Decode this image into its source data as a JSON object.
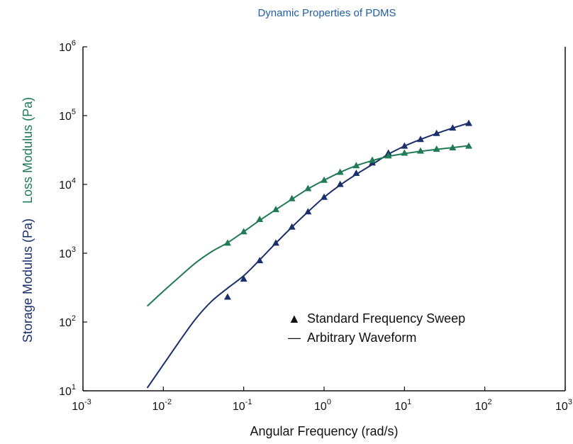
{
  "chart_data": {
    "type": "scatter",
    "title": "Dynamic Properties of PDMS",
    "xlabel": "Angular Frequency (rad/s)",
    "ylabel_top": "Loss Modulus (Pa)",
    "ylabel_bottom": "Storage Modulus (Pa)",
    "x_scale": "log",
    "y_scale": "log",
    "xlim": [
      0.001,
      1000
    ],
    "ylim": [
      10,
      1000000
    ],
    "x_ticks": [
      {
        "base": "10",
        "exp": "-3"
      },
      {
        "base": "10",
        "exp": "-2"
      },
      {
        "base": "10",
        "exp": "-1"
      },
      {
        "base": "10",
        "exp": "0"
      },
      {
        "base": "10",
        "exp": "1"
      },
      {
        "base": "10",
        "exp": "2"
      },
      {
        "base": "10",
        "exp": "3"
      }
    ],
    "y_ticks": [
      {
        "base": "10",
        "exp": "1"
      },
      {
        "base": "10",
        "exp": "2"
      },
      {
        "base": "10",
        "exp": "3"
      },
      {
        "base": "10",
        "exp": "4"
      },
      {
        "base": "10",
        "exp": "5"
      },
      {
        "base": "10",
        "exp": "6"
      }
    ],
    "grid": false,
    "legend": {
      "position": "lower-right",
      "entries": [
        {
          "symbol": "▲",
          "label": "Standard Frequency Sweep"
        },
        {
          "symbol": "—",
          "label": "Arbitrary Waveform"
        }
      ]
    },
    "colors": {
      "storage": "#1b2f6b",
      "loss": "#1f7a55",
      "title": "#1f5fa8"
    },
    "series": [
      {
        "name": "Storage Modulus",
        "color": "#1b2f6b",
        "markers": {
          "x": [
            0.063,
            0.1,
            0.158,
            0.251,
            0.398,
            0.631,
            1.0,
            1.585,
            2.512,
            3.981,
            6.31,
            10.0,
            15.85,
            25.12,
            39.81,
            63.1
          ],
          "y": [
            230,
            420,
            780,
            1400,
            2400,
            4000,
            6500,
            10000,
            14500,
            20500,
            28500,
            36000,
            45000,
            55000,
            66000,
            77000
          ]
        },
        "line": {
          "x": [
            0.0063,
            0.01,
            0.0158,
            0.0251,
            0.0398,
            0.063,
            0.1,
            0.158,
            0.251,
            0.398,
            0.631,
            1.0,
            1.585,
            2.512,
            3.981,
            6.31,
            10.0,
            15.85,
            25.12,
            39.81,
            63.1
          ],
          "y": [
            11,
            24,
            52,
            110,
            200,
            310,
            470,
            800,
            1400,
            2400,
            4000,
            6500,
            9800,
            14000,
            19500,
            27500,
            36000,
            45000,
            55000,
            66000,
            78000
          ]
        }
      },
      {
        "name": "Loss Modulus",
        "color": "#1f7a55",
        "markers": {
          "x": [
            0.063,
            0.1,
            0.158,
            0.251,
            0.398,
            0.631,
            1.0,
            1.585,
            2.512,
            3.981,
            6.31,
            10.0,
            15.85,
            25.12,
            39.81,
            63.1
          ],
          "y": [
            1400,
            2050,
            3100,
            4300,
            6200,
            8700,
            11500,
            15000,
            18700,
            22500,
            26000,
            28500,
            30500,
            32500,
            34000,
            36000
          ]
        },
        "line": {
          "x": [
            0.0063,
            0.01,
            0.0158,
            0.0251,
            0.0398,
            0.063,
            0.1,
            0.158,
            0.251,
            0.398,
            0.631,
            1.0,
            1.585,
            2.512,
            3.981,
            6.31,
            10.0,
            15.85,
            25.12,
            39.81,
            63.1
          ],
          "y": [
            170,
            280,
            450,
            720,
            1050,
            1420,
            2050,
            3000,
            4300,
            6100,
            8600,
            11500,
            15000,
            18700,
            22200,
            25500,
            28000,
            30200,
            32300,
            34300,
            36500
          ]
        }
      }
    ]
  }
}
